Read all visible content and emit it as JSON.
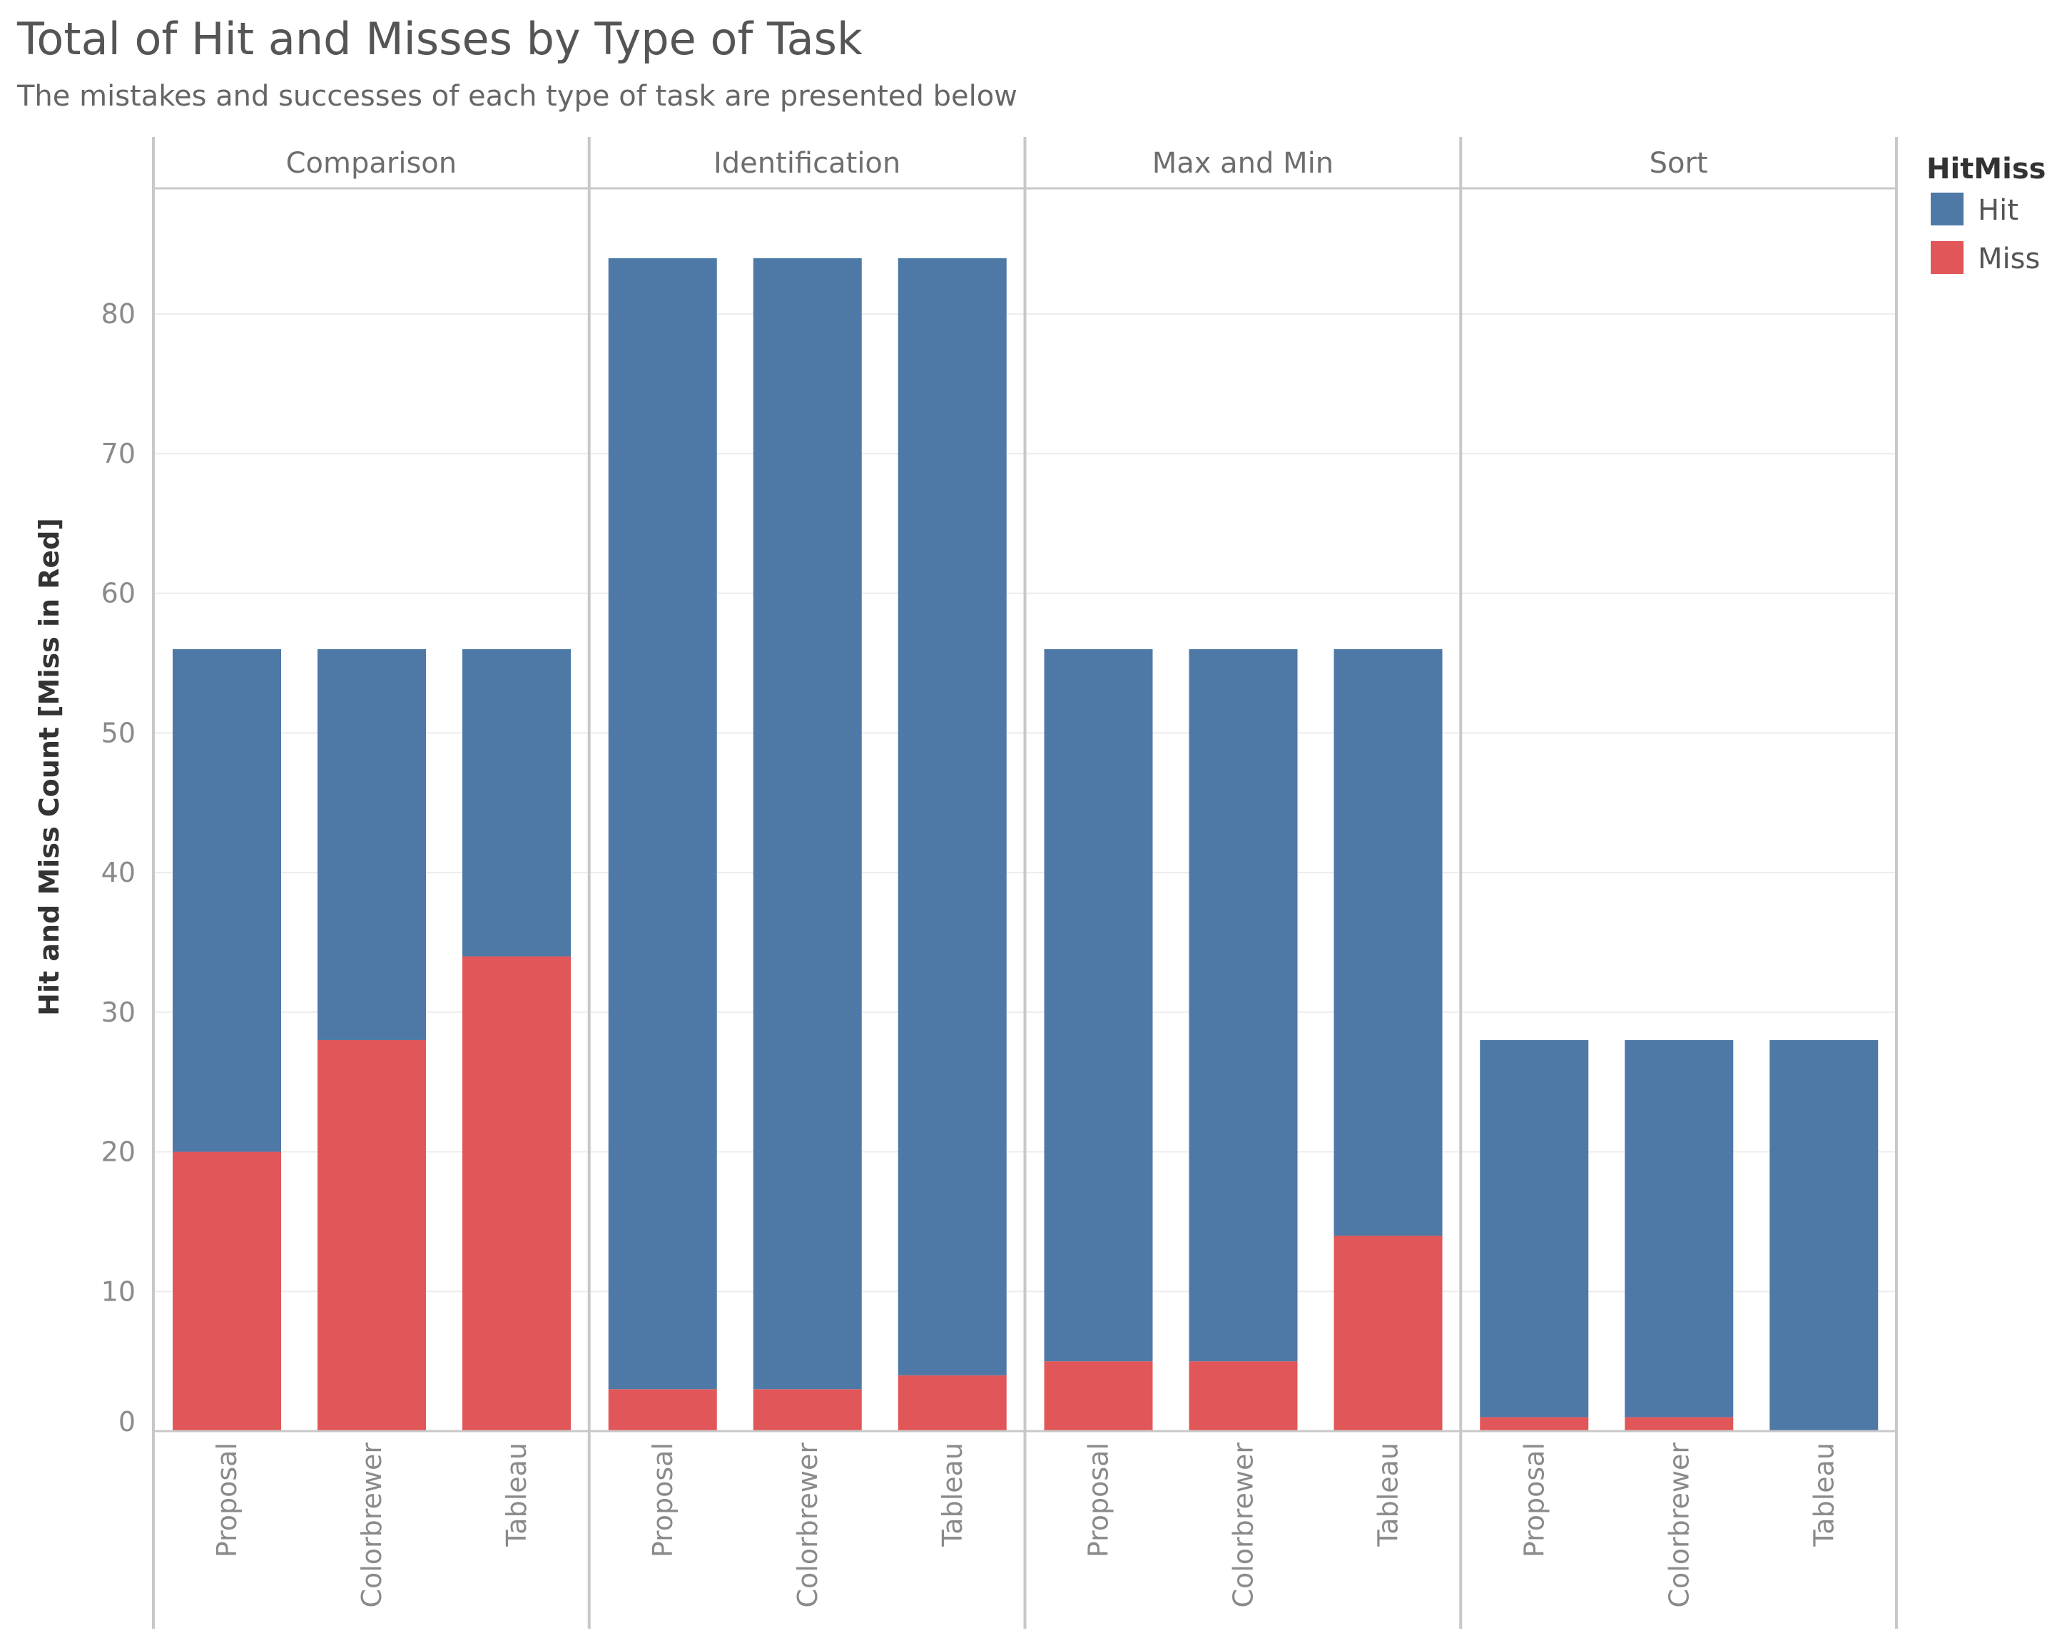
{
  "chart_data": {
    "type": "bar",
    "stacked": true,
    "title": "Total of Hit and Misses by Type of Task",
    "subtitle": "The mistakes and successes of each type of task are presented below",
    "ylabel": "Hit and Miss Count [Miss in Red]",
    "ylim": [
      0,
      89
    ],
    "yticks": [
      0,
      10,
      20,
      30,
      40,
      50,
      60,
      70,
      80
    ],
    "grid": true,
    "legend": {
      "title": "HitMiss",
      "placement": "top-right",
      "entries": [
        {
          "label": "Hit",
          "color": "#4e79a7"
        },
        {
          "label": "Miss",
          "color": "#e15759"
        }
      ]
    },
    "panels": [
      {
        "name": "Comparison",
        "categories": [
          "Proposal",
          "Colorbrewer",
          "Tableau"
        ],
        "miss": [
          20,
          28,
          34
        ],
        "hit": [
          36,
          28,
          22
        ]
      },
      {
        "name": "Identification",
        "categories": [
          "Proposal",
          "Colorbrewer",
          "Tableau"
        ],
        "miss": [
          3,
          3,
          4
        ],
        "hit": [
          81,
          81,
          80
        ]
      },
      {
        "name": "Max and Min",
        "categories": [
          "Proposal",
          "Colorbrewer",
          "Tableau"
        ],
        "miss": [
          5,
          5,
          14
        ],
        "hit": [
          51,
          51,
          42
        ]
      },
      {
        "name": "Sort",
        "categories": [
          "Proposal",
          "Colorbrewer",
          "Tableau"
        ],
        "miss": [
          1,
          1,
          0
        ],
        "hit": [
          27,
          27,
          28
        ]
      }
    ]
  }
}
